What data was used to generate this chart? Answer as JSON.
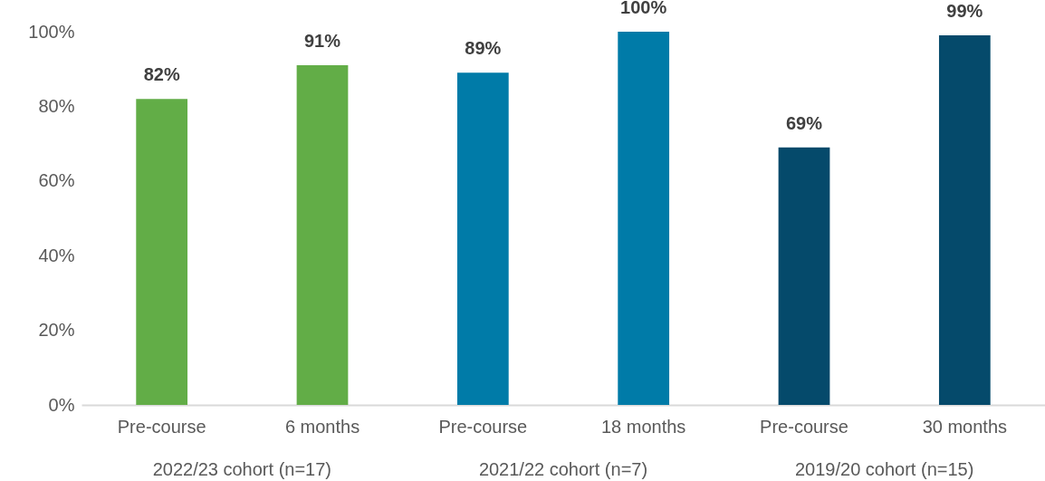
{
  "chart_data": {
    "type": "bar",
    "categories": [
      "Pre-course",
      "6 months",
      "Pre-course",
      "18 months",
      "Pre-course",
      "30 months"
    ],
    "values": [
      82,
      91,
      89,
      100,
      69,
      99
    ],
    "colors": [
      "#62ad47",
      "#62ad47",
      "#007ba8",
      "#007ba8",
      "#054a6b",
      "#054a6b"
    ],
    "value_labels": [
      "82%",
      "91%",
      "89%",
      "100%",
      "69%",
      "99%"
    ],
    "ylim": [
      0,
      100
    ],
    "yticks": [
      {
        "value": 0,
        "label": "0%"
      },
      {
        "value": 20,
        "label": "20%"
      },
      {
        "value": 40,
        "label": "40%"
      },
      {
        "value": 60,
        "label": "60%"
      },
      {
        "value": 80,
        "label": "80%"
      },
      {
        "value": 100,
        "label": "100%"
      }
    ],
    "annotations": [
      "2022/23 cohort (n=17)",
      "2021/22 cohort (n=7)",
      "2019/20 cohort (n=15)"
    ],
    "grid": false
  }
}
